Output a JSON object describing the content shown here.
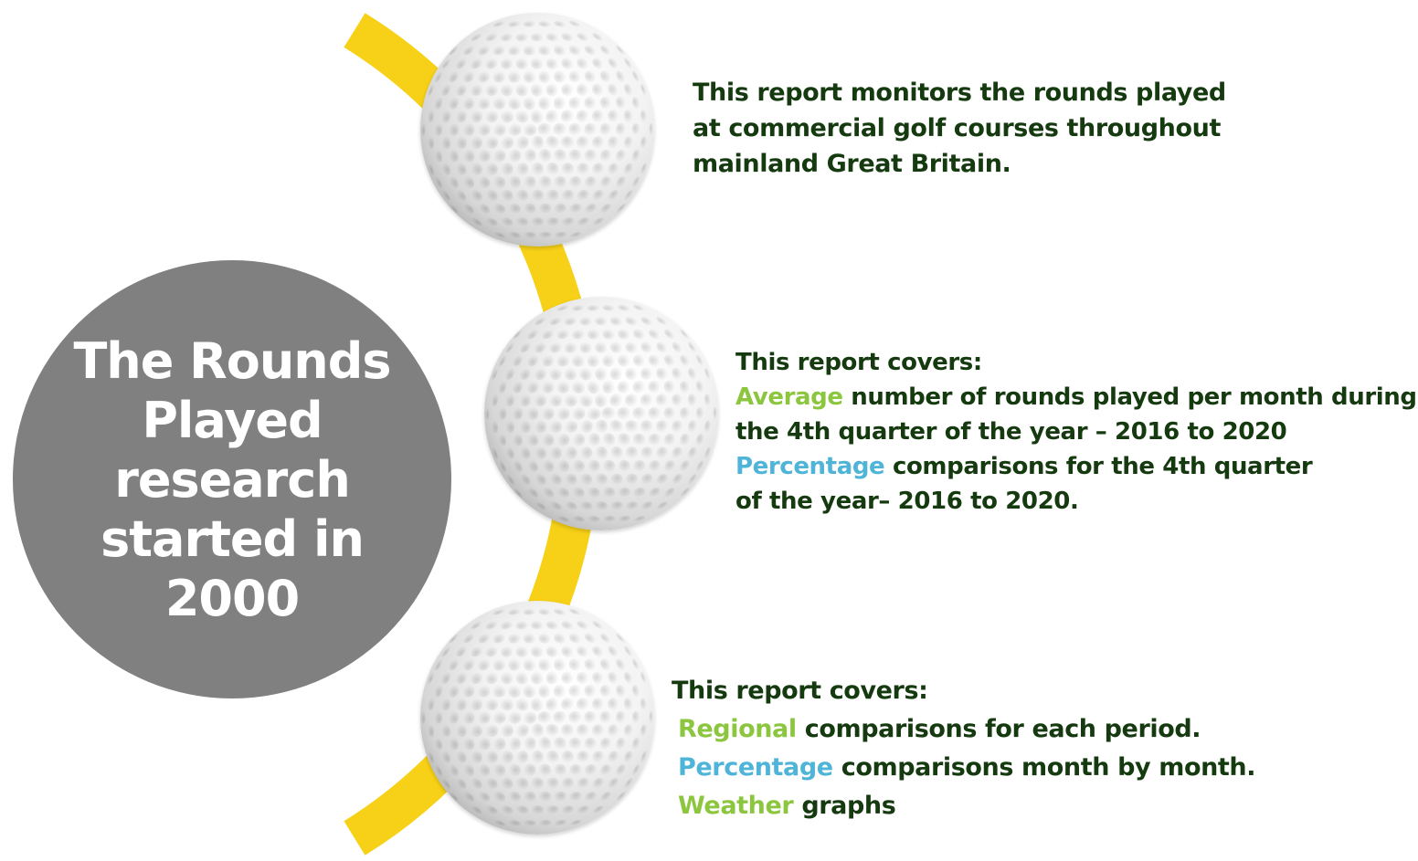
{
  "colors": {
    "circle": "#808080",
    "circle_text": "#ffffff",
    "arc": "#f7d117",
    "dark_text": "#153a0f",
    "green_highlight": "#8cc63f",
    "blue_highlight": "#4fb5d8"
  },
  "main_circle": {
    "lines": [
      "The Rounds",
      "Played",
      "research",
      "started in",
      "2000"
    ]
  },
  "icons": [
    "golf-ball-icon"
  ],
  "block1": {
    "lines": [
      "This report monitors the rounds played",
      "at commercial golf courses throughout",
      "mainland Great Britain."
    ]
  },
  "block2": {
    "heading": "This report covers:",
    "item1_highlight": "Average",
    "item1_rest": "number of rounds played per month during",
    "item1_cont": "the 4th quarter of the year – 2016 to 2020",
    "item2_highlight": "Percentage",
    "item2_rest": "comparisons for the 4th quarter",
    "item2_cont": "of the year– 2016 to 2020."
  },
  "block3": {
    "heading": "This report covers:",
    "item1_highlight": "Regional",
    "item1_rest": "comparisons for each period.",
    "item2_highlight": "Percentage",
    "item2_rest": "comparisons month by month.",
    "item3_highlight": "Weather",
    "item3_rest": "graphs"
  }
}
